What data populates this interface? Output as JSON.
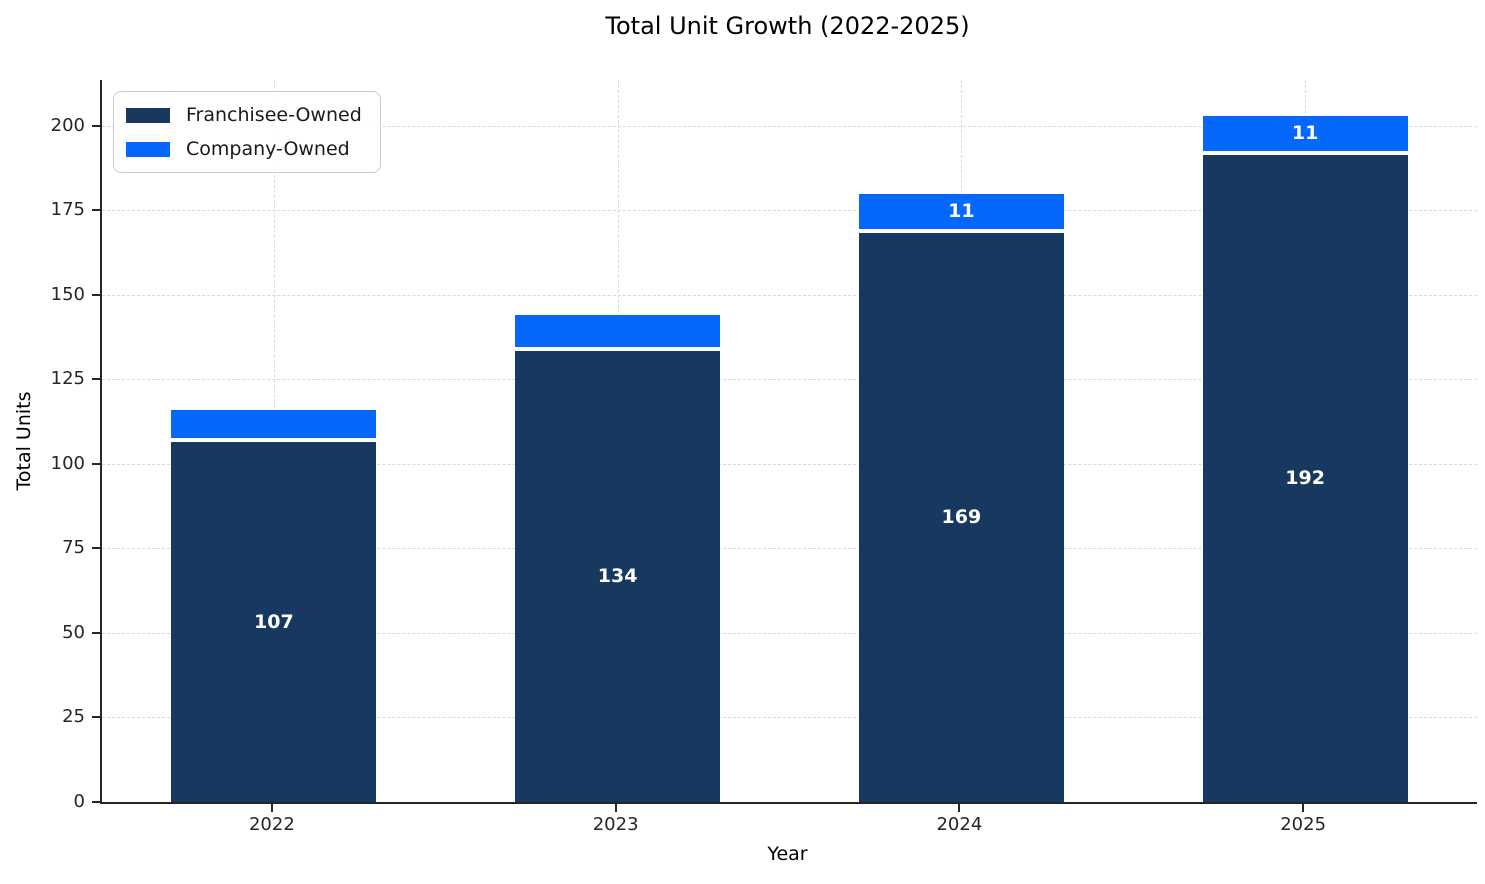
{
  "title": "Total Unit Growth (2022-2025)",
  "chart_data": {
    "type": "bar",
    "stacked": true,
    "title": "Total Unit Growth (2022-2025)",
    "xlabel": "Year",
    "ylabel": "Total Units",
    "categories": [
      "2022",
      "2023",
      "2024",
      "2025"
    ],
    "series": [
      {
        "name": "Franchisee-Owned",
        "color": "#17395f",
        "values": [
          107,
          134,
          169,
          192
        ],
        "labels": [
          "107",
          "134",
          "169",
          "192"
        ]
      },
      {
        "name": "Company-Owned",
        "color": "#0667fd",
        "values": [
          9,
          10,
          11,
          11
        ],
        "labels": [
          "",
          "",
          "11",
          "11"
        ]
      }
    ],
    "totals": [
      116,
      144,
      180,
      203
    ],
    "yticks": [
      0,
      25,
      50,
      75,
      100,
      125,
      150,
      175,
      200
    ],
    "ylim": [
      0,
      213.6
    ],
    "grid": true,
    "grid_style": "dashed",
    "legend_position": "upper left",
    "bar_label_color": "#ffffff",
    "segment_edge_color": "#ffffff",
    "axis_color": "#262626",
    "grid_color": "#d9d9d9"
  }
}
